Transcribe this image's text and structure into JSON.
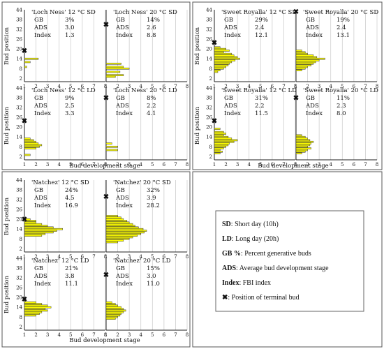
{
  "chart_data": {
    "type": "bar",
    "orientation": "horizontal",
    "xlabel": "Bud development stage",
    "ylabel": "Bud position",
    "xticks": [
      1,
      2,
      3,
      4,
      5,
      6,
      7,
      8
    ],
    "yticks": [
      2,
      8,
      14,
      20,
      26,
      32,
      38,
      44
    ],
    "xlim": [
      1,
      8
    ],
    "ylim": [
      0,
      44
    ],
    "grid": "vertical",
    "bar_color": "#ffff00",
    "marker_color": "#000000",
    "stat_labels": {
      "gb": "GB",
      "ads": "ADS",
      "index": "Index"
    },
    "panels": [
      {
        "id": "ln12sd",
        "title": "'Loch Ness' 12 °C SD",
        "gb": "3%",
        "ads": "3.0",
        "index": "1.3",
        "terminal_bud": 19,
        "bars": [
          {
            "pos": 14,
            "v": 2.2
          },
          {
            "pos": 12,
            "v": 1.5
          },
          {
            "pos": 9,
            "v": 1.2
          }
        ]
      },
      {
        "id": "ln20sd",
        "title": "'Loch Ness' 20 °C SD",
        "gb": "14%",
        "ads": "2.6",
        "index": "8.8",
        "terminal_bud": 35,
        "bars": [
          {
            "pos": 11,
            "v": 2.3
          },
          {
            "pos": 9,
            "v": 2.5
          },
          {
            "pos": 8,
            "v": 3.0
          },
          {
            "pos": 6,
            "v": 2.2
          },
          {
            "pos": 4,
            "v": 2.5
          },
          {
            "pos": 3,
            "v": 1.8
          }
        ]
      },
      {
        "id": "sr12sd",
        "title": "'Sweet Royalla' 12 °C SD",
        "gb": "29%",
        "ads": "2.4",
        "index": "12.1",
        "terminal_bud": 24,
        "bars": [
          {
            "pos": 21,
            "v": 1.5
          },
          {
            "pos": 20,
            "v": 2.0
          },
          {
            "pos": 19,
            "v": 2.3
          },
          {
            "pos": 18,
            "v": 1.8
          },
          {
            "pos": 17,
            "v": 2.5
          },
          {
            "pos": 16,
            "v": 2.7
          },
          {
            "pos": 15,
            "v": 3.0
          },
          {
            "pos": 14,
            "v": 3.2
          },
          {
            "pos": 13,
            "v": 2.8
          },
          {
            "pos": 12,
            "v": 2.5
          },
          {
            "pos": 11,
            "v": 2.3
          },
          {
            "pos": 10,
            "v": 2.2
          },
          {
            "pos": 9,
            "v": 2.0
          },
          {
            "pos": 8,
            "v": 1.8
          },
          {
            "pos": 7,
            "v": 1.5
          },
          {
            "pos": 6,
            "v": 1.3
          }
        ]
      },
      {
        "id": "sr20sd",
        "title": "'Sweet Royalla' 20 °C SD",
        "gb": "19%",
        "ads": "2.4",
        "index": "13.1",
        "terminal_bud": 43,
        "bars": [
          {
            "pos": 19,
            "v": 1.5
          },
          {
            "pos": 18,
            "v": 1.8
          },
          {
            "pos": 17,
            "v": 2.0
          },
          {
            "pos": 16,
            "v": 2.5
          },
          {
            "pos": 15,
            "v": 2.8
          },
          {
            "pos": 14,
            "v": 3.5
          },
          {
            "pos": 13,
            "v": 3.0
          },
          {
            "pos": 12,
            "v": 2.7
          },
          {
            "pos": 11,
            "v": 2.5
          },
          {
            "pos": 10,
            "v": 2.3
          },
          {
            "pos": 9,
            "v": 2.0
          },
          {
            "pos": 8,
            "v": 1.8
          },
          {
            "pos": 7,
            "v": 1.5
          }
        ]
      },
      {
        "id": "ln12ld",
        "title": "'Loch Ness' 12 °C LD",
        "gb": "9%",
        "ads": "2.5",
        "index": "3.3",
        "terminal_bud": 24,
        "bars": [
          {
            "pos": 13,
            "v": 1.5
          },
          {
            "pos": 12,
            "v": 1.8
          },
          {
            "pos": 11,
            "v": 2.0
          },
          {
            "pos": 10,
            "v": 2.2
          },
          {
            "pos": 9,
            "v": 2.5
          },
          {
            "pos": 8,
            "v": 2.3
          },
          {
            "pos": 7,
            "v": 2.0
          },
          {
            "pos": 3,
            "v": 1.5
          }
        ]
      },
      {
        "id": "ln20ld",
        "title": "'Loch Ness' 20 °C LD",
        "gb": "8%",
        "ads": "2.2",
        "index": "4.1",
        "terminal_bud": 38,
        "bars": [
          {
            "pos": 10,
            "v": 1.5
          },
          {
            "pos": 8,
            "v": 2.0
          },
          {
            "pos": 6,
            "v": 2.0
          }
        ]
      },
      {
        "id": "sr12ld",
        "title": "'Sweet Royalla' 12 °C LD",
        "gb": "31%",
        "ads": "2.2",
        "index": "11.5",
        "terminal_bud": 24,
        "bars": [
          {
            "pos": 19,
            "v": 1.5
          },
          {
            "pos": 17,
            "v": 1.8
          },
          {
            "pos": 16,
            "v": 2.0
          },
          {
            "pos": 15,
            "v": 1.8
          },
          {
            "pos": 14,
            "v": 2.2
          },
          {
            "pos": 13,
            "v": 2.5
          },
          {
            "pos": 12,
            "v": 3.0
          },
          {
            "pos": 11,
            "v": 2.7
          },
          {
            "pos": 10,
            "v": 2.3
          },
          {
            "pos": 9,
            "v": 2.2
          },
          {
            "pos": 8,
            "v": 2.0
          },
          {
            "pos": 7,
            "v": 1.8
          },
          {
            "pos": 6,
            "v": 1.5
          },
          {
            "pos": 5,
            "v": 1.7
          },
          {
            "pos": 4,
            "v": 1.5
          }
        ]
      },
      {
        "id": "sr20ld",
        "title": "'Sweet Royalla' 20 °C LD",
        "gb": "11%",
        "ads": "2.3",
        "index": "8.0",
        "terminal_bud": 38,
        "bars": [
          {
            "pos": 15,
            "v": 1.5
          },
          {
            "pos": 14,
            "v": 1.8
          },
          {
            "pos": 13,
            "v": 2.0
          },
          {
            "pos": 12,
            "v": 2.2
          },
          {
            "pos": 11,
            "v": 2.5
          },
          {
            "pos": 10,
            "v": 2.3
          },
          {
            "pos": 9,
            "v": 2.2
          },
          {
            "pos": 8,
            "v": 2.0
          },
          {
            "pos": 7,
            "v": 2.3
          },
          {
            "pos": 6,
            "v": 2.0
          },
          {
            "pos": 5,
            "v": 1.8
          },
          {
            "pos": 4,
            "v": 1.5
          }
        ]
      },
      {
        "id": "nz12sd",
        "title": "'Natchez' 12 °C SD",
        "gb": "24%",
        "ads": "4.5",
        "index": "16.9",
        "terminal_bud": 20,
        "bars": [
          {
            "pos": 20,
            "v": 1.5
          },
          {
            "pos": 19,
            "v": 2.0
          },
          {
            "pos": 18,
            "v": 2.0
          },
          {
            "pos": 17,
            "v": 2.5
          },
          {
            "pos": 16,
            "v": 3.0
          },
          {
            "pos": 15,
            "v": 3.5
          },
          {
            "pos": 14,
            "v": 4.3
          },
          {
            "pos": 13,
            "v": 3.8
          },
          {
            "pos": 12,
            "v": 3.5
          },
          {
            "pos": 11,
            "v": 2.8
          },
          {
            "pos": 10,
            "v": 2.5
          }
        ]
      },
      {
        "id": "nz20sd",
        "title": "'Natchez' 20 °C SD",
        "gb": "32%",
        "ads": "3.9",
        "index": "28.2",
        "terminal_bud": 34,
        "bars": [
          {
            "pos": 22,
            "v": 2.0
          },
          {
            "pos": 21,
            "v": 2.3
          },
          {
            "pos": 20,
            "v": 2.5
          },
          {
            "pos": 19,
            "v": 2.8
          },
          {
            "pos": 18,
            "v": 3.0
          },
          {
            "pos": 17,
            "v": 3.3
          },
          {
            "pos": 16,
            "v": 3.5
          },
          {
            "pos": 15,
            "v": 3.8
          },
          {
            "pos": 14,
            "v": 4.2
          },
          {
            "pos": 13,
            "v": 4.5
          },
          {
            "pos": 12,
            "v": 4.3
          },
          {
            "pos": 11,
            "v": 4.0
          },
          {
            "pos": 10,
            "v": 3.7
          },
          {
            "pos": 9,
            "v": 3.3
          },
          {
            "pos": 8,
            "v": 3.0
          },
          {
            "pos": 7,
            "v": 2.5
          },
          {
            "pos": 6,
            "v": 2.0
          }
        ]
      },
      {
        "id": "nz12ld",
        "title": "'Natchez' 12 °C LD",
        "gb": "21%",
        "ads": "3.8",
        "index": "11.1",
        "terminal_bud": 19,
        "bars": [
          {
            "pos": 17,
            "v": 2.0
          },
          {
            "pos": 16,
            "v": 2.5
          },
          {
            "pos": 15,
            "v": 3.0
          },
          {
            "pos": 14,
            "v": 3.3
          },
          {
            "pos": 13,
            "v": 2.8
          },
          {
            "pos": 12,
            "v": 3.0
          },
          {
            "pos": 11,
            "v": 2.5
          },
          {
            "pos": 10,
            "v": 2.3
          },
          {
            "pos": 9,
            "v": 2.0
          }
        ]
      },
      {
        "id": "nz20ld",
        "title": "'Natchez' 20 °C LD",
        "gb": "15%",
        "ads": "3.0",
        "index": "11.0",
        "terminal_bud": 34,
        "bars": [
          {
            "pos": 17,
            "v": 1.5
          },
          {
            "pos": 16,
            "v": 1.8
          },
          {
            "pos": 15,
            "v": 2.0
          },
          {
            "pos": 14,
            "v": 2.3
          },
          {
            "pos": 13,
            "v": 2.5
          },
          {
            "pos": 12,
            "v": 2.7
          },
          {
            "pos": 11,
            "v": 2.5
          },
          {
            "pos": 10,
            "v": 2.3
          },
          {
            "pos": 9,
            "v": 2.2
          },
          {
            "pos": 8,
            "v": 2.0
          },
          {
            "pos": 7,
            "v": 1.8
          }
        ]
      }
    ]
  },
  "legend": {
    "items": [
      {
        "key": "SD",
        "text": ": Short day (10h)"
      },
      {
        "key": "LD",
        "text": ": Long day (20h)"
      },
      {
        "key": "GB %",
        "text": ": Percent generative buds"
      },
      {
        "key": "ADS",
        "text": ": Average bud development stage"
      },
      {
        "key": "Index",
        "text": ": FBI index"
      },
      {
        "key": "",
        "text": ": Position of terminal bud"
      }
    ]
  }
}
